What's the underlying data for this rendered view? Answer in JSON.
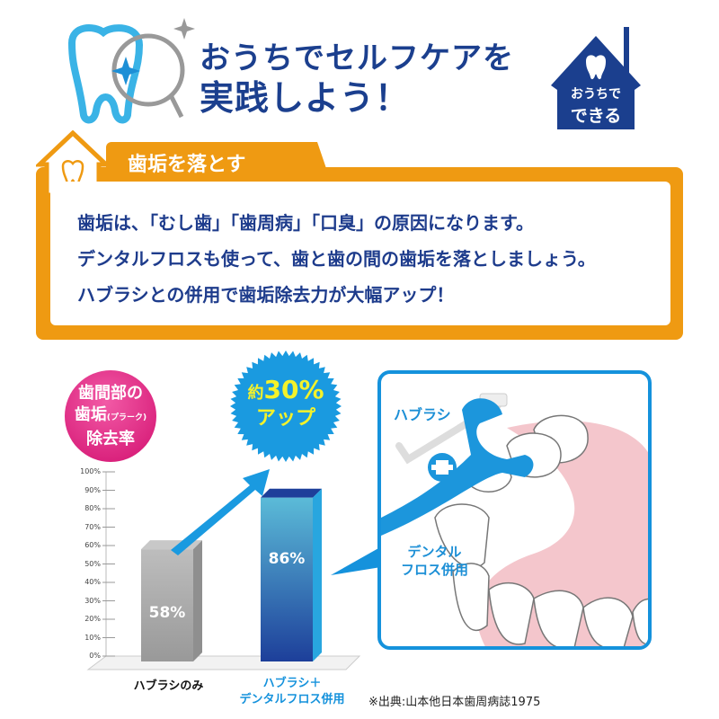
{
  "header": {
    "title_line1": "おうちでセルフケアを",
    "title_line2": "実践しよう！",
    "badge_line1": "おうちで",
    "badge_line2": "できる"
  },
  "section": {
    "tab_label": "歯垢を落とす",
    "lines": [
      "歯垢は、「むし歯」「歯周病」「口臭」の原因になります。",
      "デンタルフロスも使って、歯と歯の間の歯垢を落としましょう。",
      "ハブラシとの併用で歯垢除去力が大幅アップ！"
    ]
  },
  "badge_circle": {
    "line1": "歯間部の",
    "line2": "歯垢",
    "line2_small": "(プラーク)",
    "line3": "除去率"
  },
  "starburst": {
    "prefix": "約",
    "value": "30%",
    "suffix": "アップ"
  },
  "illustration": {
    "toothbrush_label": "ハブラシ",
    "floss_label_1": "デンタル",
    "floss_label_2": "フロス併用"
  },
  "footnote": "※出典:山本他日本歯周病誌1975",
  "colors": {
    "navy": "#1b3f8e",
    "orange": "#ef9a12",
    "pink": "#e0197d",
    "sky": "#1592dc",
    "yellow": "#f4f22a"
  },
  "chart_data": {
    "type": "bar",
    "categories": [
      "ハブラシのみ",
      "ハブラシ＋\nデンタルフロス併用"
    ],
    "category_lines": [
      [
        "ハブラシのみ"
      ],
      [
        "ハブラシ＋",
        "デンタルフロス併用"
      ]
    ],
    "values": [
      58,
      86
    ],
    "value_labels": [
      "58%",
      "86%"
    ],
    "ylim": [
      0,
      100
    ],
    "yticks": [
      "0%",
      "10%",
      "20%",
      "30%",
      "40%",
      "50%",
      "60%",
      "70%",
      "80%",
      "90%",
      "100%"
    ],
    "bar_colors": [
      "#a9a9a9",
      "#2a5fb8"
    ]
  }
}
